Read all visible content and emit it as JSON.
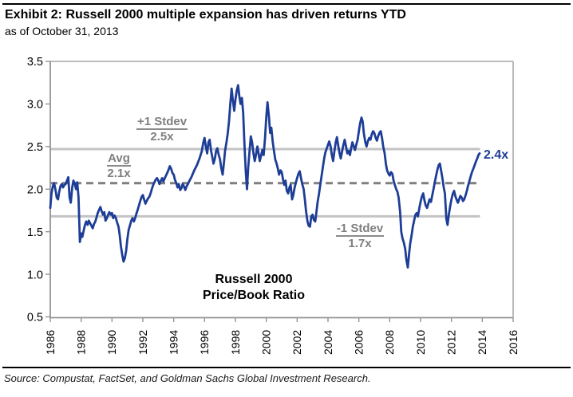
{
  "header": {
    "exhibit_title": "Exhibit 2: Russell 2000 multiple expansion has driven returns YTD",
    "subtitle": "as of October 31, 2013"
  },
  "footer": {
    "source": "Source: Compustat, FactSet, and Goldman Sachs Global Investment Research."
  },
  "colors": {
    "series_blue": "#1d3d96",
    "ref_solid_gray": "#c3c3c3",
    "ref_dash_gray": "#7f7f7f",
    "annotation_gray": "#7f7f7f",
    "axis_dark": "#949494",
    "axis_light": "#b2b2b2",
    "rule_black": "#000000"
  },
  "chart_data": {
    "type": "line",
    "title": "",
    "xlabel": "",
    "ylabel": "",
    "legend": "none",
    "gridlines": false,
    "xlim": [
      1986,
      2016
    ],
    "ylim": [
      0.5,
      3.5
    ],
    "x_ticks": [
      1986,
      1988,
      1990,
      1992,
      1994,
      1996,
      1998,
      2000,
      2002,
      2004,
      2006,
      2008,
      2010,
      2012,
      2014,
      2016
    ],
    "y_ticks": [
      "3.5",
      "3.0",
      "2.5",
      "2.0",
      "1.5",
      "1.0",
      "0.5"
    ],
    "series_label_lines": {
      "line1": "Russell 2000",
      "line2": "Price/Book Ratio"
    },
    "end_label": "2.4x",
    "end_point": {
      "x": 2013.83,
      "value": 2.42
    },
    "reference_lines": [
      {
        "label": "+1 Stdev",
        "value_label": "2.5x",
        "value": 2.47,
        "style": "solid"
      },
      {
        "label": "Avg",
        "value_label": "2.1x",
        "value": 2.07,
        "style": "dashed"
      },
      {
        "label": "-1 Stdev",
        "value_label": "1.7x",
        "value": 1.68,
        "style": "solid"
      }
    ],
    "reference_line_end_x": 2013.85,
    "points": [
      [
        1986.0,
        1.78
      ],
      [
        1986.08,
        1.95
      ],
      [
        1986.17,
        2.04
      ],
      [
        1986.25,
        2.07
      ],
      [
        1986.33,
        2.0
      ],
      [
        1986.42,
        1.9
      ],
      [
        1986.5,
        1.88
      ],
      [
        1986.58,
        1.97
      ],
      [
        1986.67,
        2.04
      ],
      [
        1986.75,
        2.06
      ],
      [
        1986.83,
        2.02
      ],
      [
        1986.92,
        2.05
      ],
      [
        1987.0,
        2.06
      ],
      [
        1987.08,
        2.1
      ],
      [
        1987.17,
        2.14
      ],
      [
        1987.25,
        1.9
      ],
      [
        1987.33,
        1.84
      ],
      [
        1987.42,
        2.02
      ],
      [
        1987.5,
        2.1
      ],
      [
        1987.58,
        2.07
      ],
      [
        1987.67,
        2.0
      ],
      [
        1987.75,
        2.08
      ],
      [
        1987.83,
        1.9
      ],
      [
        1987.92,
        1.38
      ],
      [
        1988.0,
        1.48
      ],
      [
        1988.08,
        1.44
      ],
      [
        1988.17,
        1.52
      ],
      [
        1988.25,
        1.58
      ],
      [
        1988.33,
        1.62
      ],
      [
        1988.42,
        1.58
      ],
      [
        1988.5,
        1.63
      ],
      [
        1988.58,
        1.6
      ],
      [
        1988.67,
        1.57
      ],
      [
        1988.75,
        1.54
      ],
      [
        1988.83,
        1.59
      ],
      [
        1988.92,
        1.62
      ],
      [
        1989.0,
        1.67
      ],
      [
        1989.08,
        1.72
      ],
      [
        1989.17,
        1.76
      ],
      [
        1989.25,
        1.79
      ],
      [
        1989.33,
        1.74
      ],
      [
        1989.42,
        1.7
      ],
      [
        1989.5,
        1.73
      ],
      [
        1989.58,
        1.63
      ],
      [
        1989.67,
        1.66
      ],
      [
        1989.75,
        1.7
      ],
      [
        1989.83,
        1.73
      ],
      [
        1989.92,
        1.7
      ],
      [
        1990.0,
        1.72
      ],
      [
        1990.08,
        1.66
      ],
      [
        1990.17,
        1.69
      ],
      [
        1990.25,
        1.66
      ],
      [
        1990.33,
        1.61
      ],
      [
        1990.42,
        1.56
      ],
      [
        1990.5,
        1.46
      ],
      [
        1990.58,
        1.33
      ],
      [
        1990.67,
        1.22
      ],
      [
        1990.75,
        1.15
      ],
      [
        1990.83,
        1.19
      ],
      [
        1990.92,
        1.28
      ],
      [
        1991.0,
        1.42
      ],
      [
        1991.08,
        1.52
      ],
      [
        1991.17,
        1.58
      ],
      [
        1991.25,
        1.63
      ],
      [
        1991.33,
        1.66
      ],
      [
        1991.42,
        1.62
      ],
      [
        1991.5,
        1.66
      ],
      [
        1991.58,
        1.71
      ],
      [
        1991.67,
        1.76
      ],
      [
        1991.75,
        1.81
      ],
      [
        1991.83,
        1.86
      ],
      [
        1991.92,
        1.91
      ],
      [
        1992.0,
        1.93
      ],
      [
        1992.08,
        1.88
      ],
      [
        1992.17,
        1.83
      ],
      [
        1992.25,
        1.86
      ],
      [
        1992.33,
        1.89
      ],
      [
        1992.42,
        1.91
      ],
      [
        1992.5,
        1.95
      ],
      [
        1992.58,
        2.0
      ],
      [
        1992.67,
        2.05
      ],
      [
        1992.75,
        2.08
      ],
      [
        1992.83,
        2.11
      ],
      [
        1992.92,
        2.13
      ],
      [
        1993.0,
        2.1
      ],
      [
        1993.08,
        2.06
      ],
      [
        1993.17,
        2.1
      ],
      [
        1993.25,
        2.13
      ],
      [
        1993.33,
        2.09
      ],
      [
        1993.42,
        2.13
      ],
      [
        1993.5,
        2.16
      ],
      [
        1993.58,
        2.19
      ],
      [
        1993.67,
        2.23
      ],
      [
        1993.75,
        2.27
      ],
      [
        1993.83,
        2.24
      ],
      [
        1993.92,
        2.19
      ],
      [
        1994.0,
        2.17
      ],
      [
        1994.08,
        2.11
      ],
      [
        1994.17,
        2.07
      ],
      [
        1994.25,
        2.02
      ],
      [
        1994.33,
        2.06
      ],
      [
        1994.42,
        1.99
      ],
      [
        1994.5,
        2.01
      ],
      [
        1994.58,
        2.06
      ],
      [
        1994.67,
        2.03
      ],
      [
        1994.75,
        1.99
      ],
      [
        1994.83,
        2.03
      ],
      [
        1994.92,
        2.06
      ],
      [
        1995.0,
        2.09
      ],
      [
        1995.17,
        2.15
      ],
      [
        1995.33,
        2.22
      ],
      [
        1995.5,
        2.28
      ],
      [
        1995.67,
        2.36
      ],
      [
        1995.83,
        2.45
      ],
      [
        1995.92,
        2.55
      ],
      [
        1996.0,
        2.6
      ],
      [
        1996.08,
        2.5
      ],
      [
        1996.17,
        2.42
      ],
      [
        1996.25,
        2.55
      ],
      [
        1996.33,
        2.58
      ],
      [
        1996.42,
        2.45
      ],
      [
        1996.5,
        2.38
      ],
      [
        1996.58,
        2.3
      ],
      [
        1996.67,
        2.36
      ],
      [
        1996.75,
        2.45
      ],
      [
        1996.83,
        2.48
      ],
      [
        1996.92,
        2.4
      ],
      [
        1997.0,
        2.35
      ],
      [
        1997.08,
        2.25
      ],
      [
        1997.17,
        2.17
      ],
      [
        1997.25,
        2.3
      ],
      [
        1997.33,
        2.45
      ],
      [
        1997.42,
        2.55
      ],
      [
        1997.5,
        2.65
      ],
      [
        1997.58,
        2.79
      ],
      [
        1997.67,
        3.0
      ],
      [
        1997.75,
        3.18
      ],
      [
        1997.83,
        3.05
      ],
      [
        1997.92,
        2.92
      ],
      [
        1998.0,
        3.05
      ],
      [
        1998.08,
        3.15
      ],
      [
        1998.17,
        3.22
      ],
      [
        1998.25,
        3.1
      ],
      [
        1998.33,
        3.0
      ],
      [
        1998.42,
        3.07
      ],
      [
        1998.5,
        2.9
      ],
      [
        1998.58,
        2.55
      ],
      [
        1998.67,
        2.2
      ],
      [
        1998.75,
        2.0
      ],
      [
        1998.83,
        2.25
      ],
      [
        1998.92,
        2.46
      ],
      [
        1999.0,
        2.62
      ],
      [
        1999.08,
        2.55
      ],
      [
        1999.17,
        2.42
      ],
      [
        1999.25,
        2.33
      ],
      [
        1999.33,
        2.4
      ],
      [
        1999.42,
        2.5
      ],
      [
        1999.5,
        2.42
      ],
      [
        1999.58,
        2.33
      ],
      [
        1999.67,
        2.4
      ],
      [
        1999.75,
        2.46
      ],
      [
        1999.83,
        2.4
      ],
      [
        1999.92,
        2.6
      ],
      [
        2000.0,
        2.85
      ],
      [
        2000.08,
        3.02
      ],
      [
        2000.17,
        2.85
      ],
      [
        2000.25,
        2.66
      ],
      [
        2000.33,
        2.72
      ],
      [
        2000.42,
        2.55
      ],
      [
        2000.5,
        2.45
      ],
      [
        2000.58,
        2.35
      ],
      [
        2000.67,
        2.3
      ],
      [
        2000.75,
        2.24
      ],
      [
        2000.83,
        2.17
      ],
      [
        2000.92,
        2.22
      ],
      [
        2001.0,
        2.2
      ],
      [
        2001.08,
        2.12
      ],
      [
        2001.17,
        2.05
      ],
      [
        2001.25,
        2.1
      ],
      [
        2001.33,
        1.98
      ],
      [
        2001.42,
        1.95
      ],
      [
        2001.5,
        2.02
      ],
      [
        2001.58,
        2.05
      ],
      [
        2001.67,
        1.88
      ],
      [
        2001.75,
        1.93
      ],
      [
        2001.83,
        2.01
      ],
      [
        2001.92,
        2.08
      ],
      [
        2002.0,
        2.13
      ],
      [
        2002.08,
        2.18
      ],
      [
        2002.17,
        2.21
      ],
      [
        2002.25,
        2.13
      ],
      [
        2002.33,
        2.06
      ],
      [
        2002.42,
        2.0
      ],
      [
        2002.5,
        1.88
      ],
      [
        2002.58,
        1.74
      ],
      [
        2002.67,
        1.62
      ],
      [
        2002.75,
        1.57
      ],
      [
        2002.83,
        1.56
      ],
      [
        2002.92,
        1.68
      ],
      [
        2003.0,
        1.7
      ],
      [
        2003.08,
        1.64
      ],
      [
        2003.17,
        1.62
      ],
      [
        2003.25,
        1.73
      ],
      [
        2003.33,
        1.85
      ],
      [
        2003.42,
        1.95
      ],
      [
        2003.5,
        2.05
      ],
      [
        2003.58,
        2.15
      ],
      [
        2003.67,
        2.26
      ],
      [
        2003.75,
        2.36
      ],
      [
        2003.83,
        2.43
      ],
      [
        2003.92,
        2.48
      ],
      [
        2004.0,
        2.52
      ],
      [
        2004.08,
        2.56
      ],
      [
        2004.17,
        2.5
      ],
      [
        2004.25,
        2.4
      ],
      [
        2004.33,
        2.33
      ],
      [
        2004.42,
        2.45
      ],
      [
        2004.5,
        2.55
      ],
      [
        2004.58,
        2.61
      ],
      [
        2004.67,
        2.5
      ],
      [
        2004.75,
        2.42
      ],
      [
        2004.83,
        2.36
      ],
      [
        2004.92,
        2.45
      ],
      [
        2005.0,
        2.52
      ],
      [
        2005.08,
        2.58
      ],
      [
        2005.17,
        2.5
      ],
      [
        2005.25,
        2.42
      ],
      [
        2005.33,
        2.45
      ],
      [
        2005.42,
        2.4
      ],
      [
        2005.5,
        2.48
      ],
      [
        2005.58,
        2.55
      ],
      [
        2005.67,
        2.5
      ],
      [
        2005.75,
        2.46
      ],
      [
        2005.83,
        2.52
      ],
      [
        2005.92,
        2.58
      ],
      [
        2006.0,
        2.68
      ],
      [
        2006.08,
        2.77
      ],
      [
        2006.17,
        2.84
      ],
      [
        2006.25,
        2.79
      ],
      [
        2006.33,
        2.65
      ],
      [
        2006.42,
        2.55
      ],
      [
        2006.5,
        2.5
      ],
      [
        2006.58,
        2.56
      ],
      [
        2006.67,
        2.6
      ],
      [
        2006.75,
        2.58
      ],
      [
        2006.83,
        2.64
      ],
      [
        2006.92,
        2.68
      ],
      [
        2007.0,
        2.66
      ],
      [
        2007.08,
        2.61
      ],
      [
        2007.17,
        2.57
      ],
      [
        2007.25,
        2.62
      ],
      [
        2007.33,
        2.66
      ],
      [
        2007.42,
        2.68
      ],
      [
        2007.5,
        2.6
      ],
      [
        2007.58,
        2.5
      ],
      [
        2007.67,
        2.42
      ],
      [
        2007.75,
        2.3
      ],
      [
        2007.83,
        2.22
      ],
      [
        2007.92,
        2.18
      ],
      [
        2008.0,
        2.16
      ],
      [
        2008.08,
        2.2
      ],
      [
        2008.17,
        2.18
      ],
      [
        2008.25,
        2.1
      ],
      [
        2008.33,
        2.05
      ],
      [
        2008.42,
        2.0
      ],
      [
        2008.5,
        1.97
      ],
      [
        2008.58,
        1.9
      ],
      [
        2008.67,
        1.74
      ],
      [
        2008.75,
        1.5
      ],
      [
        2008.83,
        1.42
      ],
      [
        2008.92,
        1.37
      ],
      [
        2009.0,
        1.3
      ],
      [
        2009.08,
        1.17
      ],
      [
        2009.17,
        1.08
      ],
      [
        2009.25,
        1.23
      ],
      [
        2009.33,
        1.36
      ],
      [
        2009.42,
        1.46
      ],
      [
        2009.5,
        1.56
      ],
      [
        2009.58,
        1.63
      ],
      [
        2009.67,
        1.7
      ],
      [
        2009.75,
        1.72
      ],
      [
        2009.83,
        1.68
      ],
      [
        2009.92,
        1.78
      ],
      [
        2010.0,
        1.85
      ],
      [
        2010.08,
        1.91
      ],
      [
        2010.17,
        1.95
      ],
      [
        2010.25,
        1.87
      ],
      [
        2010.33,
        1.81
      ],
      [
        2010.42,
        1.78
      ],
      [
        2010.5,
        1.83
      ],
      [
        2010.58,
        1.88
      ],
      [
        2010.67,
        1.85
      ],
      [
        2010.75,
        1.92
      ],
      [
        2010.83,
        1.99
      ],
      [
        2010.92,
        2.08
      ],
      [
        2011.0,
        2.15
      ],
      [
        2011.08,
        2.22
      ],
      [
        2011.17,
        2.28
      ],
      [
        2011.25,
        2.3
      ],
      [
        2011.33,
        2.22
      ],
      [
        2011.42,
        2.12
      ],
      [
        2011.5,
        2.02
      ],
      [
        2011.58,
        1.95
      ],
      [
        2011.67,
        1.65
      ],
      [
        2011.75,
        1.58
      ],
      [
        2011.83,
        1.7
      ],
      [
        2011.92,
        1.8
      ],
      [
        2012.0,
        1.88
      ],
      [
        2012.08,
        1.94
      ],
      [
        2012.17,
        1.98
      ],
      [
        2012.25,
        1.92
      ],
      [
        2012.33,
        1.88
      ],
      [
        2012.42,
        1.84
      ],
      [
        2012.5,
        1.88
      ],
      [
        2012.58,
        1.92
      ],
      [
        2012.67,
        1.9
      ],
      [
        2012.75,
        1.86
      ],
      [
        2012.83,
        1.88
      ],
      [
        2012.92,
        1.93
      ],
      [
        2013.0,
        1.98
      ],
      [
        2013.08,
        2.04
      ],
      [
        2013.17,
        2.1
      ],
      [
        2013.25,
        2.15
      ],
      [
        2013.33,
        2.2
      ],
      [
        2013.42,
        2.24
      ],
      [
        2013.5,
        2.28
      ],
      [
        2013.58,
        2.32
      ],
      [
        2013.67,
        2.36
      ],
      [
        2013.75,
        2.4
      ],
      [
        2013.83,
        2.42
      ]
    ]
  }
}
